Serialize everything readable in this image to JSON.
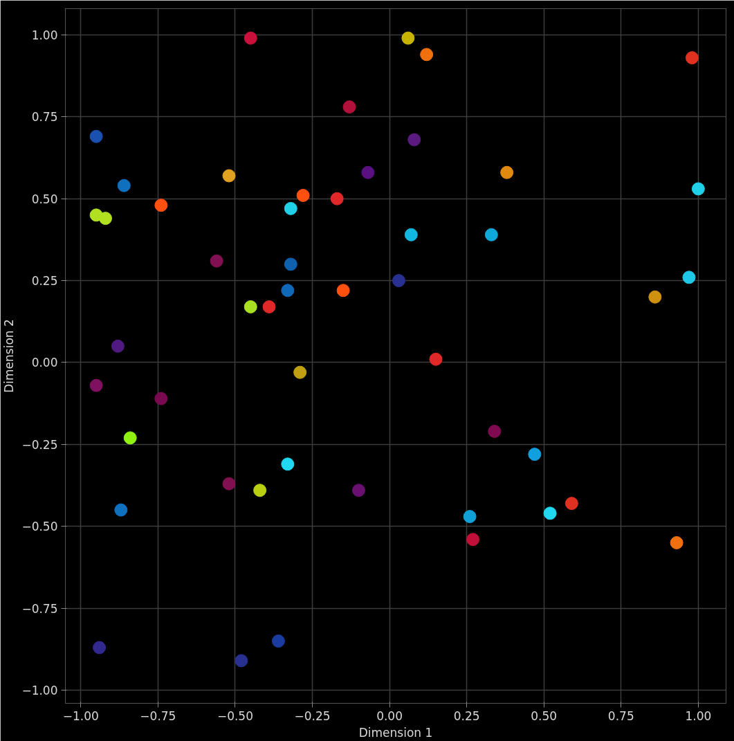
{
  "chart_data": {
    "type": "scatter",
    "xlabel": "Dimension 1",
    "ylabel": "Dimension 2",
    "xlim": [
      -1.05,
      1.09
    ],
    "ylim": [
      -1.04,
      1.08
    ],
    "xticks": [
      {
        "value": -1,
        "label": "−1.00"
      },
      {
        "value": -0.75,
        "label": "−0.75"
      },
      {
        "value": -0.5,
        "label": "−0.50"
      },
      {
        "value": -0.25,
        "label": "−0.25"
      },
      {
        "value": 0,
        "label": "0.00"
      },
      {
        "value": 0.25,
        "label": "0.25"
      },
      {
        "value": 0.5,
        "label": "0.50"
      },
      {
        "value": 0.75,
        "label": "0.75"
      },
      {
        "value": 1,
        "label": "1.00"
      }
    ],
    "yticks": [
      {
        "value": -1,
        "label": "−1.00"
      },
      {
        "value": -0.75,
        "label": "−0.75"
      },
      {
        "value": -0.5,
        "label": "−0.50"
      },
      {
        "value": -0.25,
        "label": "−0.25"
      },
      {
        "value": 0,
        "label": "0.00"
      },
      {
        "value": 0.25,
        "label": "0.25"
      },
      {
        "value": 0.5,
        "label": "0.50"
      },
      {
        "value": 0.75,
        "label": "0.75"
      },
      {
        "value": 1,
        "label": "1.00"
      }
    ],
    "grid": true,
    "marker": "circle",
    "x": [
      -0.45,
      0.06,
      0.12,
      0.98,
      -0.13,
      -0.95,
      0.08,
      -0.07,
      0.38,
      -0.86,
      -0.52,
      1.0,
      -0.74,
      -0.28,
      -0.17,
      -0.32,
      -0.95,
      -0.92,
      0.07,
      0.33,
      -0.56,
      -0.32,
      0.97,
      0.03,
      -0.33,
      -0.15,
      0.86,
      -0.45,
      -0.39,
      -0.88,
      0.15,
      -0.29,
      -0.95,
      -0.74,
      -0.84,
      0.34,
      0.47,
      -0.33,
      -0.52,
      -0.42,
      -0.1,
      -0.87,
      0.59,
      0.52,
      0.26,
      0.27,
      0.93,
      -0.94,
      -0.36,
      -0.48
    ],
    "values": [
      0.99,
      0.99,
      0.94,
      0.93,
      0.78,
      0.69,
      0.68,
      0.58,
      0.58,
      0.54,
      0.57,
      0.53,
      0.48,
      0.51,
      0.5,
      0.47,
      0.45,
      0.44,
      0.39,
      0.39,
      0.31,
      0.3,
      0.26,
      0.25,
      0.22,
      0.22,
      0.2,
      0.17,
      0.17,
      0.05,
      0.01,
      -0.03,
      -0.07,
      -0.11,
      -0.23,
      -0.21,
      -0.28,
      -0.31,
      -0.37,
      -0.39,
      -0.39,
      -0.45,
      -0.43,
      -0.46,
      -0.47,
      -0.54,
      -0.55,
      -0.87,
      -0.85,
      -0.91
    ],
    "colors": [
      "#c8103a",
      "#c8b400",
      "#f07010",
      "#e03020",
      "#b0103a",
      "#1a50b0",
      "#5a1a80",
      "#5a1080",
      "#e08a10",
      "#1070c0",
      "#e0a020",
      "#20d0e8",
      "#ff5010",
      "#ff5010",
      "#e02828",
      "#20d0e8",
      "#b0e020",
      "#b0e020",
      "#10b8e0",
      "#10a8d8",
      "#801050",
      "#1060b0",
      "#20c8e8",
      "#283090",
      "#1068b8",
      "#ff5010",
      "#d09010",
      "#a8e020",
      "#e02828",
      "#501a80",
      "#e02828",
      "#c0a010",
      "#801060",
      "#7a0a50",
      "#90f010",
      "#800a50",
      "#10a0e0",
      "#20d8f0",
      "#801050",
      "#b8d010",
      "#6a1070",
      "#1070c0",
      "#e03020",
      "#20d8f0",
      "#10a0d8",
      "#c0103a",
      "#f07010",
      "#302a90",
      "#1a3ca0",
      "#283090"
    ]
  }
}
